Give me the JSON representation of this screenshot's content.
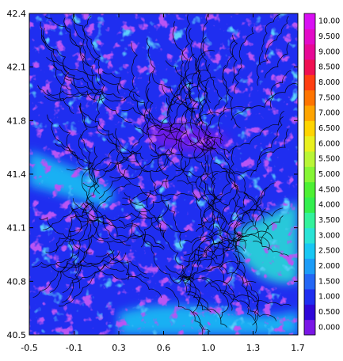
{
  "chart_data": {
    "type": "heatmap",
    "title": "",
    "xlabel": "",
    "ylabel": "",
    "xlim": [
      -0.5,
      1.7
    ],
    "ylim": [
      40.5,
      42.4
    ],
    "x_ticks": [
      "-0.5",
      "-0.1",
      "0.3",
      "0.6",
      "1.0",
      "1.3",
      "1.7"
    ],
    "y_ticks": [
      "40.5",
      "40.8",
      "41.1",
      "41.4",
      "41.8",
      "42.1",
      "42.4"
    ],
    "overlay": "streamlines",
    "colorbar": {
      "labels": [
        "0.000",
        "0.500",
        "1.000",
        "1.500",
        "2.000",
        "2.500",
        "3.000",
        "3.500",
        "4.000",
        "4.500",
        "5.000",
        "5.500",
        "6.000",
        "6.500",
        "7.000",
        "7.500",
        "8.000",
        "8.500",
        "9.000",
        "9.500",
        "10.00"
      ],
      "colors": [
        "#7a16e6",
        "#2f07d8",
        "#1f2ef0",
        "#2467f5",
        "#1c9cf7",
        "#18c7f3",
        "#2ae3d6",
        "#33f29c",
        "#33ef4e",
        "#4df033",
        "#86f535",
        "#b9f536",
        "#e9f01f",
        "#ffd400",
        "#ffa400",
        "#ff7400",
        "#ff3f12",
        "#ef1052",
        "#e60896",
        "#e20ac8",
        "#d80ff3"
      ]
    },
    "field_zones": [
      {
        "kind": "dominant",
        "value": 1.0
      },
      {
        "kind": "low-pockets",
        "value": 0.0
      },
      {
        "kind": "coastal-band-west",
        "value": 2.8
      },
      {
        "kind": "coastal-band-east",
        "value": 3.0
      },
      {
        "kind": "southern-coast",
        "value": 2.6
      }
    ]
  }
}
